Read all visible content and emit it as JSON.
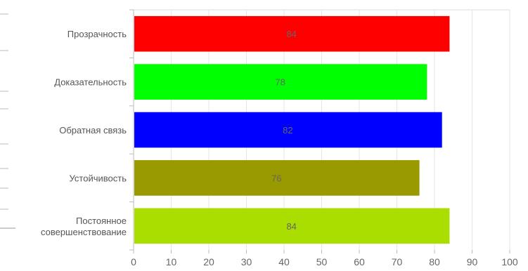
{
  "chart_data": {
    "type": "bar",
    "orientation": "horizontal",
    "categories": [
      [
        "Прозрачность"
      ],
      [
        "Доказательность"
      ],
      [
        "Обратная связь"
      ],
      [
        "Устойчивость"
      ],
      [
        "Постоянное",
        "совершенствование"
      ]
    ],
    "values": [
      84,
      78,
      82,
      76,
      84
    ],
    "colors": [
      "#ff0000",
      "#00ff00",
      "#0000ff",
      "#999900",
      "#aadd00"
    ],
    "label_color": "#666666",
    "xlim": [
      0,
      100
    ],
    "xticks": [
      0,
      10,
      20,
      30,
      40,
      50,
      60,
      70,
      80,
      90,
      100
    ],
    "grid": true,
    "data_labels": true
  }
}
